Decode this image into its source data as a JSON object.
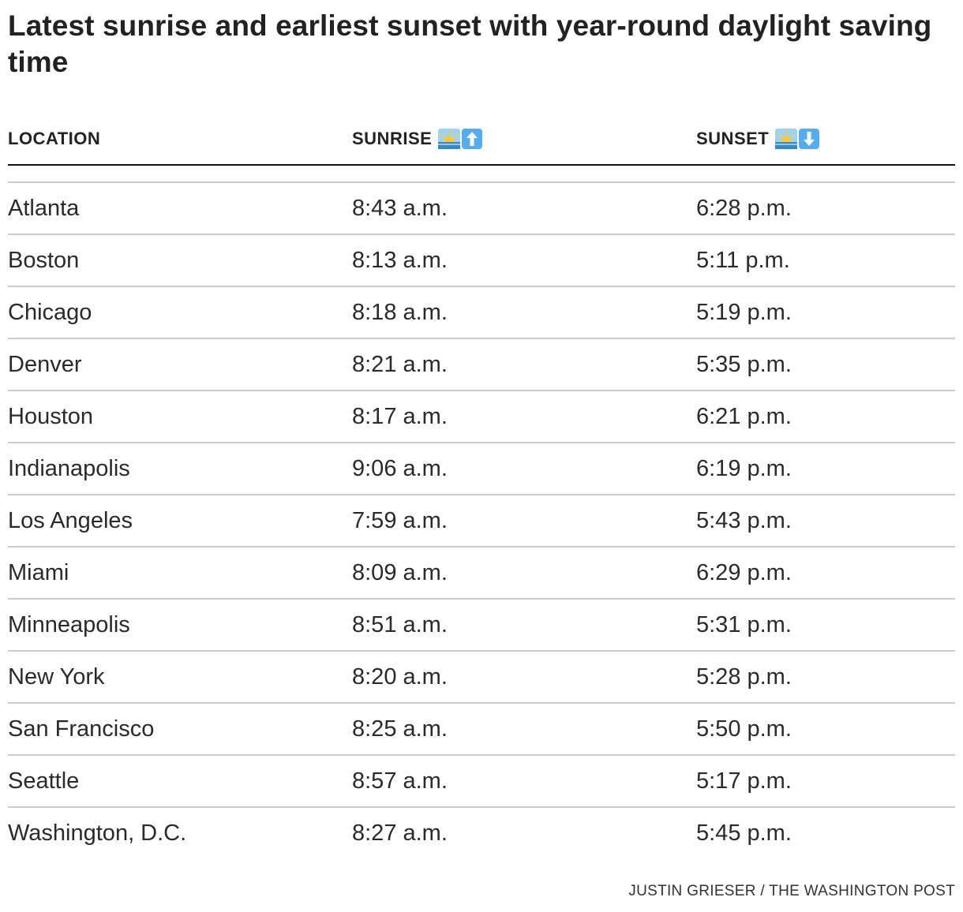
{
  "chart_data": {
    "type": "table",
    "title": "Latest sunrise and earliest sunset with year-round daylight saving time",
    "columns": [
      "LOCATION",
      "SUNRISE",
      "SUNSET"
    ],
    "header_icons": {
      "sunrise": [
        "sunrise-emoji",
        "up-arrow-emoji"
      ],
      "sunset": [
        "sunrise-emoji",
        "down-arrow-emoji"
      ]
    },
    "rows": [
      {
        "location": "Atlanta",
        "sunrise": "8:43 a.m.",
        "sunset": "6:28 p.m."
      },
      {
        "location": "Boston",
        "sunrise": "8:13 a.m.",
        "sunset": "5:11 p.m."
      },
      {
        "location": "Chicago",
        "sunrise": "8:18 a.m.",
        "sunset": "5:19 p.m."
      },
      {
        "location": "Denver",
        "sunrise": "8:21 a.m.",
        "sunset": "5:35 p.m."
      },
      {
        "location": "Houston",
        "sunrise": "8:17 a.m.",
        "sunset": "6:21 p.m."
      },
      {
        "location": "Indianapolis",
        "sunrise": "9:06 a.m.",
        "sunset": "6:19 p.m."
      },
      {
        "location": "Los Angeles",
        "sunrise": "7:59 a.m.",
        "sunset": "5:43 p.m."
      },
      {
        "location": "Miami",
        "sunrise": "8:09 a.m.",
        "sunset": "6:29 p.m."
      },
      {
        "location": "Minneapolis",
        "sunrise": "8:51 a.m.",
        "sunset": "5:31 p.m."
      },
      {
        "location": "New York",
        "sunrise": "8:20 a.m.",
        "sunset": "5:28 p.m."
      },
      {
        "location": "San Francisco",
        "sunrise": "8:25 a.m.",
        "sunset": "5:50 p.m."
      },
      {
        "location": "Seattle",
        "sunrise": "8:57 a.m.",
        "sunset": "5:17 p.m."
      },
      {
        "location": "Washington, D.C.",
        "sunrise": "8:27 a.m.",
        "sunset": "5:45 p.m."
      }
    ],
    "credit": "JUSTIN GRIESER / THE WASHINGTON POST"
  },
  "colors": {
    "text": "#2a2a2a",
    "header_rule": "#111111",
    "row_rule": "#cccccc",
    "emoji_sky": "#9fd3f5",
    "emoji_sun": "#ffc83d",
    "emoji_arrow_box": "#55acee"
  }
}
